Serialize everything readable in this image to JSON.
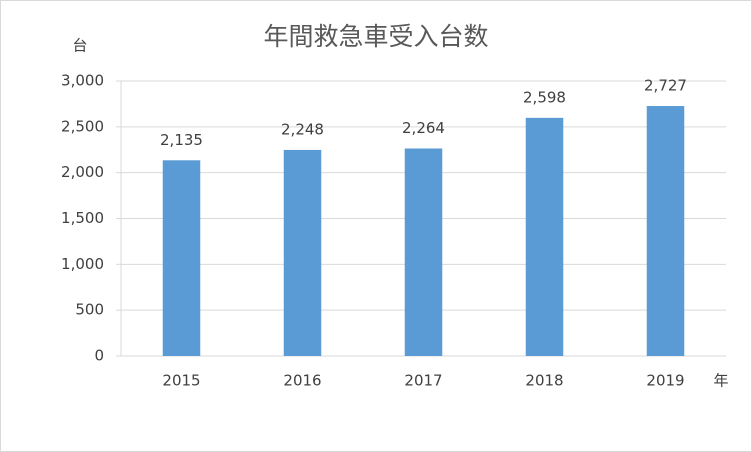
{
  "chart_data": {
    "type": "bar",
    "title": "年間救急車受入台数",
    "y_label": "台",
    "x_label": "年",
    "categories": [
      "2015",
      "2016",
      "2017",
      "2018",
      "2019"
    ],
    "values": [
      2135,
      2248,
      2264,
      2598,
      2727
    ],
    "value_labels": [
      "2,135",
      "2,248",
      "2,264",
      "2,598",
      "2,727"
    ],
    "color": "#5b9bd5",
    "ylim": [
      0,
      3000
    ],
    "yticks": [
      0,
      500,
      {
        "value": 1000,
        "label": "1,000"
      },
      {
        "value": 1500,
        "label": "1,500"
      },
      {
        "value": 2000,
        "label": "2,000"
      },
      {
        "value": 2500,
        "label": "2,500"
      },
      {
        "value": 3000,
        "label": "3,000"
      }
    ],
    "grid": true
  }
}
